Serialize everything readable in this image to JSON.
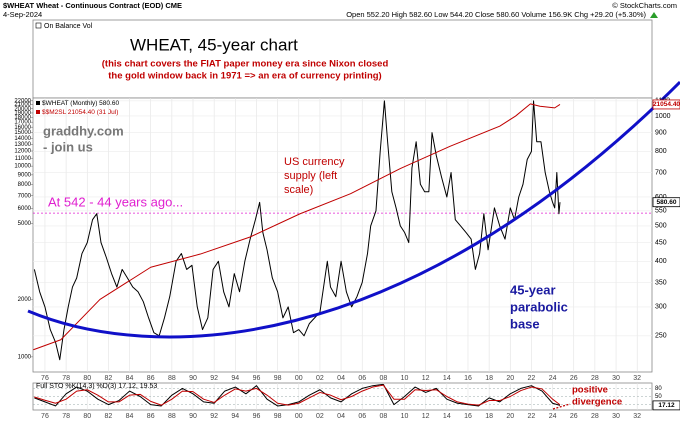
{
  "header": {
    "symbol_line": "$WHEAT Wheat - Continuous Contract (EOD) CME",
    "date": "4-Sep-2024",
    "quote": "Open 552.20 High 582.60 Low 544.20 Close 580.60 Volume 156.9K Chg +29.20 (+5.30%)",
    "source": "© StockCharts.com",
    "upper_panel": "On Balance Vol"
  },
  "chart_data": [
    {
      "type": "line",
      "title": "WHEAT, 45-year chart",
      "subtitle": [
        "(this chart covers the FIAT paper money era since Nixon closed",
        "the gold window back in 1971 => an era of currency printing)"
      ],
      "annotations": {
        "watermark": [
          "graddhy.com",
          "- join us"
        ],
        "currency": [
          "US currency",
          "supply (left",
          "scale)"
        ],
        "reference": "At 542 - 44 years ago...",
        "base": [
          "45-year",
          "parabolic",
          "base"
        ]
      },
      "reference_line": 542,
      "log_scale": true,
      "grid": true,
      "xlim": [
        1974.87,
        2033.4
      ],
      "xticks": [
        {
          "value": 1976,
          "label": "76"
        },
        {
          "value": 1978,
          "label": "78"
        },
        {
          "value": 1980,
          "label": "80"
        },
        {
          "value": 1982,
          "label": "82"
        },
        {
          "value": 1984,
          "label": "84"
        },
        {
          "value": 1986,
          "label": "86"
        },
        {
          "value": 1988,
          "label": "88"
        },
        {
          "value": 1990,
          "label": "90"
        },
        {
          "value": 1992,
          "label": "92"
        },
        {
          "value": 1994,
          "label": "94"
        },
        {
          "value": 1996,
          "label": "96"
        },
        {
          "value": 1998,
          "label": "98"
        },
        {
          "value": 2000,
          "label": "00"
        },
        {
          "value": 2002,
          "label": "02"
        },
        {
          "value": 2004,
          "label": "04"
        },
        {
          "value": 2006,
          "label": "06"
        },
        {
          "value": 2008,
          "label": "08"
        },
        {
          "value": 2010,
          "label": "10"
        },
        {
          "value": 2012,
          "label": "12"
        },
        {
          "value": 2014,
          "label": "14"
        },
        {
          "value": 2016,
          "label": "16"
        },
        {
          "value": 2018,
          "label": "18"
        },
        {
          "value": 2020,
          "label": "20"
        },
        {
          "value": 2022,
          "label": "22"
        },
        {
          "value": 2024,
          "label": "24"
        },
        {
          "value": 2026,
          "label": "26"
        },
        {
          "value": 2028,
          "label": "28"
        },
        {
          "value": 2030,
          "label": "30"
        },
        {
          "value": 2032,
          "label": "32"
        }
      ],
      "ylim": [
        833,
        22760
      ],
      "yticks": [
        22000,
        21000,
        20000,
        19000,
        18000,
        17000,
        16000,
        15000,
        14000,
        13000,
        12000,
        11000,
        10000,
        9000,
        8000,
        7000,
        6000,
        5000,
        2000,
        1000
      ],
      "y2lim": [
        199,
        1120
      ],
      "y2ticks": [
        1100,
        1000,
        900,
        800,
        700,
        600,
        550,
        500,
        450,
        400,
        350,
        300,
        250
      ],
      "series": [
        {
          "name": "$WHEAT (Monthly) 580.60",
          "color": "#000000",
          "axis": "y2",
          "x": [
            1975.0,
            1975.5,
            1976.0,
            1976.5,
            1977.0,
            1977.4,
            1977.8,
            1978.2,
            1978.6,
            1979.0,
            1979.5,
            1980.0,
            1980.5,
            1980.9,
            1981.3,
            1981.8,
            1982.3,
            1982.8,
            1983.3,
            1983.8,
            1984.3,
            1984.8,
            1985.3,
            1985.8,
            1986.3,
            1986.8,
            1987.3,
            1987.8,
            1988.4,
            1988.9,
            1989.4,
            1989.9,
            1990.4,
            1990.9,
            1991.4,
            1991.9,
            1992.4,
            1992.9,
            1993.4,
            1993.9,
            1994.4,
            1994.9,
            1995.4,
            1995.9,
            1996.3,
            1996.6,
            1997.0,
            1997.5,
            1998.0,
            1998.5,
            1999.0,
            1999.5,
            2000.0,
            2000.5,
            2001.0,
            2001.5,
            2002.0,
            2002.7,
            2003.0,
            2003.5,
            2004.0,
            2004.5,
            2005.0,
            2005.5,
            2006.0,
            2006.5,
            2006.8,
            2007.3,
            2007.7,
            2008.1,
            2008.4,
            2008.8,
            2009.2,
            2009.6,
            2010.0,
            2010.4,
            2010.7,
            2011.1,
            2011.5,
            2011.9,
            2012.3,
            2012.6,
            2013.0,
            2013.5,
            2014.0,
            2014.4,
            2014.8,
            2015.3,
            2015.8,
            2016.3,
            2016.7,
            2017.1,
            2017.5,
            2017.9,
            2018.5,
            2019.0,
            2019.5,
            2020.0,
            2020.4,
            2020.8,
            2021.2,
            2021.6,
            2022.0,
            2022.2,
            2022.5,
            2022.9,
            2023.3,
            2023.7,
            2024.0,
            2024.2,
            2024.4,
            2024.6,
            2024.7
          ],
          "values": [
            380,
            330,
            300,
            260,
            240,
            215,
            260,
            300,
            340,
            360,
            420,
            450,
            520,
            540,
            450,
            410,
            370,
            340,
            380,
            360,
            340,
            330,
            310,
            280,
            255,
            250,
            280,
            320,
            400,
            420,
            380,
            390,
            300,
            260,
            280,
            380,
            400,
            330,
            300,
            370,
            330,
            400,
            460,
            520,
            580,
            480,
            430,
            360,
            330,
            280,
            300,
            255,
            260,
            250,
            270,
            280,
            290,
            400,
            340,
            320,
            400,
            330,
            300,
            320,
            350,
            420,
            500,
            550,
            800,
            1100,
            850,
            620,
            560,
            500,
            480,
            450,
            720,
            850,
            650,
            620,
            620,
            900,
            780,
            680,
            600,
            700,
            520,
            500,
            480,
            460,
            380,
            420,
            540,
            430,
            560,
            500,
            460,
            560,
            520,
            600,
            650,
            760,
            800,
            1100,
            850,
            850,
            700,
            620,
            580,
            560,
            700,
            540,
            580.6
          ],
          "value_labels": [
            null,
            null,
            null,
            null,
            null,
            null,
            null,
            null,
            null,
            null,
            null,
            null,
            null,
            null,
            null,
            null,
            null,
            null,
            null,
            null,
            null,
            null,
            null,
            null,
            null,
            null,
            null,
            null,
            null,
            null,
            null,
            null,
            null,
            null,
            null,
            null,
            null,
            null,
            null,
            null,
            null,
            null,
            null,
            null,
            null,
            null,
            null,
            null,
            null,
            null,
            null,
            null,
            null,
            null,
            null,
            null,
            null,
            null,
            null,
            null,
            null,
            null,
            null,
            null,
            null,
            null,
            null,
            null,
            null,
            null,
            null,
            null,
            null,
            null,
            null,
            null,
            null,
            null,
            null,
            null,
            null,
            null,
            null,
            null,
            null,
            null,
            null,
            null,
            null,
            null,
            null,
            null,
            null,
            null,
            null,
            null,
            null,
            null,
            null,
            null,
            null,
            null,
            null,
            null,
            null,
            null,
            null,
            null,
            null,
            null,
            null,
            null,
            "580.60"
          ]
        },
        {
          "name": "$$M2SL 21054.40 (31 Jul)",
          "color": "#c00000",
          "axis": "y",
          "x": [
            1974.9,
            1977.5,
            1981.2,
            1986.0,
            1990.7,
            1995.4,
            2000.1,
            2004.9,
            2009.6,
            2014.3,
            2019.0,
            2020.5,
            2021.9,
            2022.8,
            2024.2,
            2024.7
          ],
          "values": [
            1090,
            1230,
            2000,
            2950,
            3460,
            4250,
            5620,
            7170,
            9710,
            12700,
            16200,
            18300,
            21200,
            20600,
            20200,
            21054.4
          ],
          "value_labels": [
            null,
            null,
            null,
            null,
            null,
            null,
            null,
            null,
            null,
            null,
            null,
            null,
            null,
            null,
            null,
            "21054.40"
          ]
        }
      ]
    },
    {
      "type": "line",
      "title": "Full STO %K(14,3) %D(3) 17.12, 19.53",
      "annotations": [
        "positive",
        "divergence"
      ],
      "ylim": [
        0,
        100
      ],
      "yticks": [
        80,
        50,
        20
      ],
      "x": [
        1975,
        1976,
        1977,
        1978,
        1979,
        1980,
        1981,
        1982,
        1983,
        1984,
        1985,
        1986,
        1987,
        1988,
        1989,
        1990,
        1991,
        1992,
        1993,
        1994,
        1995,
        1996,
        1997,
        1998,
        1999,
        2000,
        2001,
        2002,
        2003,
        2004,
        2005,
        2006,
        2007,
        2008,
        2009,
        2010,
        2011,
        2012,
        2013,
        2014,
        2015,
        2016,
        2017,
        2018,
        2019,
        2020,
        2021,
        2022,
        2023,
        2024,
        2024.7
      ],
      "series": [
        {
          "color": "#000000",
          "values": [
            45,
            30,
            15,
            60,
            85,
            70,
            40,
            20,
            35,
            70,
            50,
            20,
            15,
            55,
            80,
            60,
            30,
            25,
            70,
            85,
            60,
            90,
            40,
            15,
            20,
            30,
            55,
            75,
            45,
            30,
            60,
            80,
            90,
            95,
            20,
            50,
            85,
            65,
            80,
            40,
            25,
            20,
            15,
            45,
            30,
            60,
            80,
            90,
            70,
            25,
            17.12
          ],
          "value_labels": [
            null,
            null,
            null,
            null,
            null,
            null,
            null,
            null,
            null,
            null,
            null,
            null,
            null,
            null,
            null,
            null,
            null,
            null,
            null,
            null,
            null,
            null,
            null,
            null,
            null,
            null,
            null,
            null,
            null,
            null,
            null,
            null,
            null,
            null,
            null,
            null,
            null,
            null,
            null,
            null,
            null,
            null,
            null,
            null,
            null,
            null,
            null,
            null,
            null,
            null,
            "17.12"
          ]
        },
        {
          "color": "#c00000",
          "values": [
            48,
            36,
            25,
            40,
            70,
            75,
            55,
            30,
            30,
            55,
            58,
            32,
            18,
            40,
            70,
            68,
            40,
            28,
            55,
            78,
            70,
            80,
            55,
            25,
            18,
            25,
            45,
            65,
            55,
            38,
            50,
            70,
            85,
            92,
            40,
            40,
            75,
            72,
            75,
            50,
            30,
            22,
            18,
            35,
            35,
            50,
            72,
            85,
            78,
            40,
            19.53
          ]
        }
      ]
    }
  ]
}
